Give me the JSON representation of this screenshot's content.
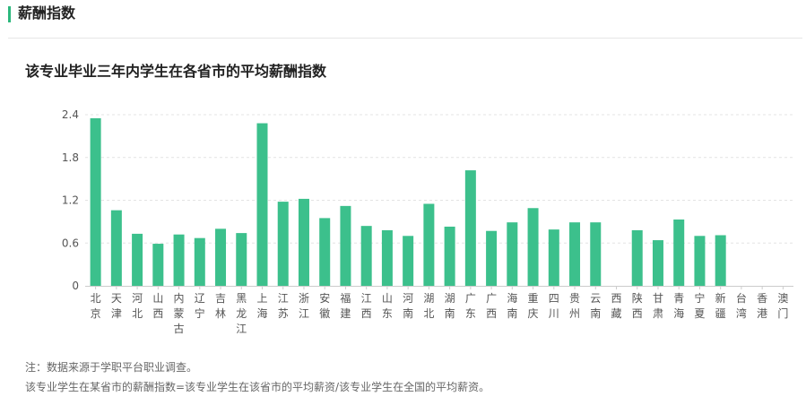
{
  "header": {
    "title": "薪酬指数"
  },
  "chart_title": "该专业毕业三年内学生在各省市的平均薪酬指数",
  "accent_color": "#3cc08c",
  "chart_data": {
    "type": "bar",
    "title": "该专业毕业三年内学生在各省市的平均薪酬指数",
    "xlabel": "",
    "ylabel": "",
    "ylim": [
      0,
      2.4
    ],
    "yticks": [
      "0",
      "0.6",
      "1.2",
      "1.8",
      "2.4"
    ],
    "grid": true,
    "categories": [
      "北京",
      "天津",
      "河北",
      "山西",
      "内蒙古",
      "辽宁",
      "吉林",
      "黑龙江",
      "上海",
      "江苏",
      "浙江",
      "安徽",
      "福建",
      "江西",
      "山东",
      "河南",
      "湖北",
      "湖南",
      "广东",
      "广西",
      "海南",
      "重庆",
      "四川",
      "贵州",
      "云南",
      "西藏",
      "陕西",
      "甘肃",
      "青海",
      "宁夏",
      "新疆",
      "台湾",
      "香港",
      "澳门"
    ],
    "values": [
      2.35,
      1.06,
      0.73,
      0.59,
      0.72,
      0.67,
      0.8,
      0.74,
      2.28,
      1.18,
      1.22,
      0.95,
      1.12,
      0.84,
      0.78,
      0.7,
      1.15,
      0.83,
      1.62,
      0.77,
      0.89,
      1.09,
      0.79,
      0.89,
      0.89,
      null,
      0.78,
      0.64,
      0.93,
      0.7,
      0.71,
      null,
      null,
      null
    ]
  },
  "notes": [
    "注：数据来源于学职平台职业调查。",
    "该专业学生在某省市的薪酬指数=该专业学生在该省市的平均薪资/该专业学生在全国的平均薪资。"
  ]
}
